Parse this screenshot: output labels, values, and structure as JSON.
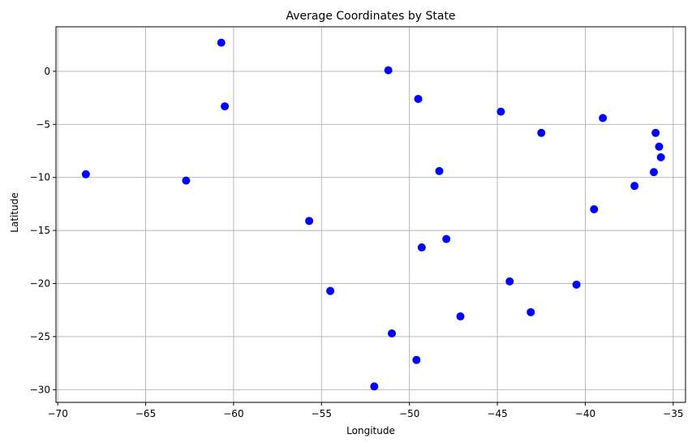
{
  "chart_data": {
    "type": "scatter",
    "title": "Average Coordinates by State",
    "xlabel": "Longitude",
    "ylabel": "Latitude",
    "xlim": [
      -70.1,
      -34.3
    ],
    "ylim": [
      -31.2,
      4.2
    ],
    "xticks": [
      -70,
      -65,
      -60,
      -55,
      -50,
      -45,
      -40,
      -35
    ],
    "yticks": [
      0,
      -5,
      -10,
      -15,
      -20,
      -25,
      -30
    ],
    "grid": true,
    "marker_color": "#0000ff",
    "points": [
      {
        "x": -60.7,
        "y": 2.7
      },
      {
        "x": -51.2,
        "y": 0.1
      },
      {
        "x": -60.5,
        "y": -3.3
      },
      {
        "x": -49.5,
        "y": -2.6
      },
      {
        "x": -44.8,
        "y": -3.8
      },
      {
        "x": -39.0,
        "y": -4.4
      },
      {
        "x": -42.5,
        "y": -5.8
      },
      {
        "x": -36.0,
        "y": -5.8
      },
      {
        "x": -35.8,
        "y": -7.1
      },
      {
        "x": -35.7,
        "y": -8.1
      },
      {
        "x": -36.1,
        "y": -9.5
      },
      {
        "x": -68.4,
        "y": -9.7
      },
      {
        "x": -62.7,
        "y": -10.3
      },
      {
        "x": -48.3,
        "y": -9.4
      },
      {
        "x": -37.2,
        "y": -10.8
      },
      {
        "x": -39.5,
        "y": -13.0
      },
      {
        "x": -55.7,
        "y": -14.1
      },
      {
        "x": -47.9,
        "y": -15.8
      },
      {
        "x": -49.3,
        "y": -16.6
      },
      {
        "x": -44.3,
        "y": -19.8
      },
      {
        "x": -40.5,
        "y": -20.1
      },
      {
        "x": -54.5,
        "y": -20.7
      },
      {
        "x": -43.1,
        "y": -22.7
      },
      {
        "x": -47.1,
        "y": -23.1
      },
      {
        "x": -51.0,
        "y": -24.7
      },
      {
        "x": -49.6,
        "y": -27.2
      },
      {
        "x": -52.0,
        "y": -29.7
      }
    ]
  }
}
